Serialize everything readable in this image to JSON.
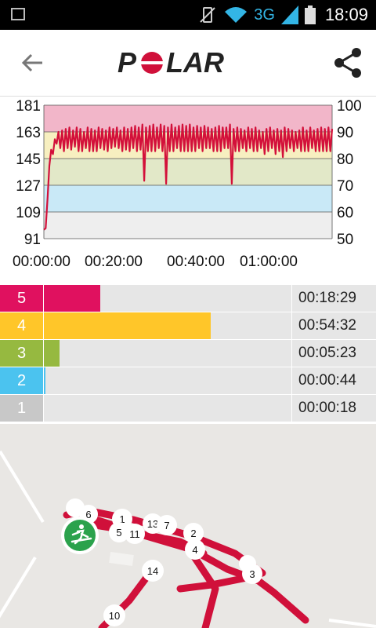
{
  "status": {
    "network": "3G",
    "time": "18:09"
  },
  "header": {
    "brand": "POLAR",
    "back_icon": "arrow-left-icon",
    "share_icon": "share-icon"
  },
  "colors": {
    "brand_red": "#d0103a",
    "zone5": "#e0115f",
    "zone4": "#ffc629",
    "zone3": "#96b940",
    "zone2": "#4bc3ef",
    "zone1": "#c8c8c8"
  },
  "chart_data": {
    "type": "line",
    "title": "",
    "xlabel": "",
    "ylabel": "",
    "x_ticks": [
      "00:00:00",
      "00:20:00",
      "00:40:00",
      "01:00:00"
    ],
    "left_ticks": [
      "181",
      "163",
      "145",
      "127",
      "109",
      "91"
    ],
    "right_ticks": [
      "100",
      "90",
      "80",
      "70",
      "60",
      "50"
    ],
    "ylim_left": [
      91,
      181
    ],
    "ylim_right": [
      50,
      100
    ],
    "xlim_minutes": [
      0,
      79
    ],
    "zones_bands": [
      {
        "zone": 5,
        "from": 163,
        "to": 181,
        "color": "#f2b6c9"
      },
      {
        "zone": 4,
        "from": 145,
        "to": 163,
        "color": "#f7efc0"
      },
      {
        "zone": 3,
        "from": 127,
        "to": 145,
        "color": "#e2e8c8"
      },
      {
        "zone": 2,
        "from": 109,
        "to": 127,
        "color": "#c9e9f7"
      },
      {
        "zone": 1,
        "from": 91,
        "to": 109,
        "color": "#eeeeee"
      }
    ],
    "series": [
      {
        "values_minutes": [
          0,
          0.5,
          1,
          1.5,
          2,
          2.5,
          3,
          3.5,
          4,
          4.5,
          5,
          5.5,
          6,
          6.5,
          7,
          7.5,
          8,
          8.5,
          9,
          9.5,
          10,
          10.5,
          11,
          11.5,
          12,
          12.5,
          13,
          13.5,
          14,
          14.5,
          15,
          15.5,
          16,
          16.5,
          17,
          17.5,
          18,
          18.5,
          19,
          19.5,
          20,
          20.5,
          21,
          21.5,
          22,
          22.5,
          23,
          23.5,
          24,
          24.5,
          25,
          25.5,
          26,
          26.5,
          27,
          27.5,
          28,
          28.5,
          29,
          29.5,
          30,
          30.5,
          31,
          31.5,
          32,
          32.5,
          33,
          33.5,
          34,
          34.5,
          35,
          35.5,
          36,
          36.5,
          37,
          37.5,
          38,
          38.5,
          39,
          39.5,
          40,
          40.5,
          41,
          41.5,
          42,
          42.5,
          43,
          43.5,
          44,
          44.5,
          45,
          45.5,
          46,
          46.5,
          47,
          47.5,
          48,
          48.5,
          49,
          49.5,
          50,
          50.5,
          51,
          51.5,
          52,
          52.5,
          53,
          53.5,
          54,
          54.5,
          55,
          55.5,
          56,
          56.5,
          57,
          57.5,
          58,
          58.5,
          59,
          59.5,
          60,
          60.5,
          61,
          61.5,
          62,
          62.5,
          63,
          63.5,
          64,
          64.5,
          65,
          65.5,
          66,
          66.5,
          67,
          67.5,
          68,
          68.5,
          69,
          69.5,
          70,
          70.5,
          71,
          71.5,
          72,
          72.5,
          73,
          73.5,
          74,
          74.5,
          75,
          75.5,
          76,
          76.5,
          77,
          77.5,
          78,
          78.5,
          79
        ],
        "values_bpm": [
          97,
          98,
          118,
          140,
          151,
          148,
          158,
          155,
          163,
          152,
          164,
          150,
          165,
          152,
          166,
          151,
          164,
          153,
          166,
          150,
          165,
          150,
          163,
          152,
          166,
          150,
          165,
          150,
          164,
          150,
          166,
          152,
          165,
          151,
          164,
          150,
          166,
          152,
          165,
          153,
          166,
          152,
          164,
          150,
          166,
          151,
          165,
          150,
          166,
          152,
          167,
          150,
          166,
          151,
          168,
          130,
          166,
          150,
          167,
          150,
          168,
          150,
          166,
          152,
          168,
          150,
          167,
          128,
          166,
          150,
          168,
          150,
          166,
          152,
          167,
          150,
          168,
          150,
          167,
          150,
          168,
          150,
          166,
          150,
          167,
          152,
          166,
          150,
          167,
          152,
          166,
          152,
          165,
          150,
          166,
          150,
          167,
          150,
          166,
          152,
          166,
          152,
          168,
          128,
          165,
          150,
          166,
          150,
          165,
          152,
          164,
          150,
          166,
          152,
          165,
          150,
          166,
          150,
          164,
          152,
          163,
          148,
          165,
          150,
          166,
          152,
          164,
          148,
          165,
          150,
          164,
          146,
          166,
          150,
          165,
          152,
          164,
          150,
          163,
          152,
          164,
          150,
          166,
          150,
          164,
          150,
          166,
          152,
          164,
          150,
          165,
          150,
          166,
          150,
          165,
          150,
          166,
          150,
          165
        ]
      }
    ]
  },
  "zones": [
    {
      "label": "5",
      "time": "00:18:29",
      "fraction": 0.231,
      "color": "#e0115f"
    },
    {
      "label": "4",
      "time": "00:54:32",
      "fraction": 0.68,
      "color": "#ffc629"
    },
    {
      "label": "3",
      "time": "00:05:23",
      "fraction": 0.068,
      "color": "#96b940"
    },
    {
      "label": "2",
      "time": "00:00:44",
      "fraction": 0.01,
      "color": "#4bc3ef"
    },
    {
      "label": "1",
      "time": "00:00:18",
      "fraction": 0.0,
      "color": "#c8c8c8"
    }
  ],
  "map": {
    "start_icon": "cross-country-skier-icon",
    "markers": [
      "1",
      "2",
      "3",
      "4",
      "5",
      "6",
      "7",
      "10",
      "11",
      "13",
      "14"
    ]
  }
}
